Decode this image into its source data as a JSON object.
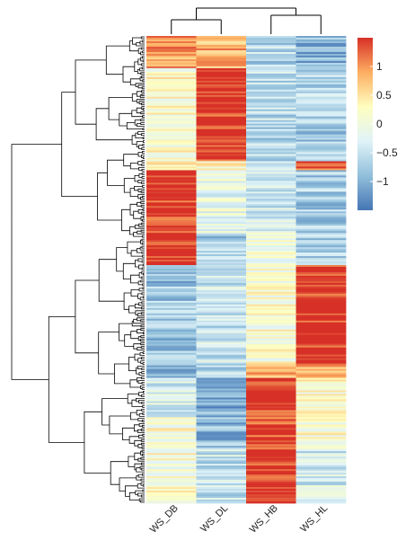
{
  "chart_data": {
    "type": "heatmap",
    "title": "",
    "xlabel": "",
    "ylabel": "",
    "columns": [
      "WS_DB",
      "WS_DL",
      "WS_HB",
      "WS_HL"
    ],
    "column_dendrogram": [
      [
        "WS_DB",
        "WS_DL"
      ],
      [
        "WS_HB",
        "WS_HL"
      ]
    ],
    "row_dendrogram": true,
    "n_rows_estimated": 240,
    "legend": {
      "position": "right",
      "range": [
        -1.5,
        1.5
      ],
      "ticks": [
        -1,
        -0.5,
        0,
        0.5,
        1
      ],
      "tick_labels": [
        "−1",
        "−0.5",
        "0",
        "0.5",
        "1"
      ],
      "palette": [
        "#4575b4",
        "#91bfdb",
        "#e0f3f8",
        "#fefec0",
        "#fdae61",
        "#d73027"
      ]
    },
    "row_blocks": [
      {
        "rows": 18,
        "values": [
          0.9,
          0.8,
          -0.6,
          -1.0
        ]
      },
      {
        "rows": 52,
        "values": [
          0.2,
          1.5,
          -0.6,
          -0.7
        ]
      },
      {
        "rows": 5,
        "values": [
          0.6,
          0.2,
          -0.3,
          1.2
        ]
      },
      {
        "rows": 35,
        "values": [
          1.5,
          -0.1,
          -0.4,
          -0.7
        ]
      },
      {
        "rows": 18,
        "values": [
          1.5,
          -0.7,
          0.0,
          -0.6
        ]
      },
      {
        "rows": 55,
        "values": [
          -0.8,
          -0.5,
          0.1,
          1.5
        ]
      },
      {
        "rows": 8,
        "values": [
          -1.1,
          -0.6,
          0.8,
          1.0
        ]
      },
      {
        "rows": 22,
        "values": [
          -0.4,
          -1.0,
          1.5,
          0.2
        ]
      },
      {
        "rows": 18,
        "values": [
          0.1,
          -0.9,
          1.4,
          0.1
        ]
      },
      {
        "rows": 30,
        "values": [
          0.1,
          -0.5,
          1.5,
          -0.4
        ]
      }
    ]
  }
}
